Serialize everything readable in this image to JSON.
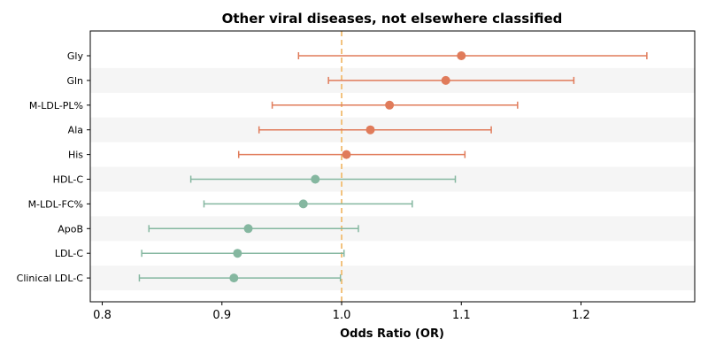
{
  "chart_data": {
    "type": "forest",
    "title": "Other viral diseases, not elsewhere classified",
    "xlabel": "Odds Ratio (OR)",
    "xlim": [
      0.79,
      1.295
    ],
    "xticks": [
      "0.8",
      "0.9",
      "1.0",
      "1.1",
      "1.2"
    ],
    "xtick_values": [
      0.8,
      0.9,
      1.0,
      1.1,
      1.2
    ],
    "reference_line": 1.0,
    "colors": {
      "positive": "#e07b5a",
      "negative": "#85b7a0",
      "reference": "#f2c27e",
      "band": "#f5f5f5"
    },
    "rows": [
      {
        "label": "Gly",
        "or": 1.1,
        "lower": 0.964,
        "upper": 1.255
      },
      {
        "label": "Gln",
        "or": 1.087,
        "lower": 0.989,
        "upper": 1.194
      },
      {
        "label": "M-LDL-PL%",
        "or": 1.04,
        "lower": 0.942,
        "upper": 1.147
      },
      {
        "label": "Ala",
        "or": 1.024,
        "lower": 0.931,
        "upper": 1.125
      },
      {
        "label": "His",
        "or": 1.004,
        "lower": 0.914,
        "upper": 1.103
      },
      {
        "label": "HDL-C",
        "or": 0.978,
        "lower": 0.874,
        "upper": 1.095
      },
      {
        "label": "M-LDL-FC%",
        "or": 0.968,
        "lower": 0.885,
        "upper": 1.059
      },
      {
        "label": "ApoB",
        "or": 0.922,
        "lower": 0.839,
        "upper": 1.014
      },
      {
        "label": "LDL-C",
        "or": 0.913,
        "lower": 0.833,
        "upper": 1.002
      },
      {
        "label": "Clinical LDL-C",
        "or": 0.91,
        "lower": 0.831,
        "upper": 0.999
      }
    ]
  }
}
